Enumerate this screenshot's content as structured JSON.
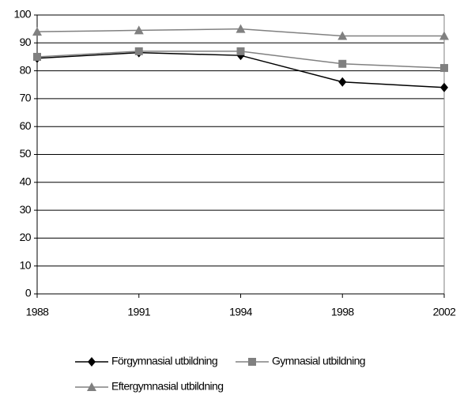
{
  "chart_data": {
    "type": "line",
    "categories": [
      "1988",
      "1991",
      "1994",
      "1998",
      "2002"
    ],
    "series": [
      {
        "name": "Förgymnasial utbildning",
        "color": "#000000",
        "marker": "diamond",
        "values": [
          84.5,
          86.5,
          85.5,
          76,
          74
        ]
      },
      {
        "name": "Gymnasial utbildning",
        "color": "#808080",
        "marker": "square",
        "values": [
          85,
          87,
          87,
          82.5,
          81
        ]
      },
      {
        "name": "Eftergymnasial utbildning",
        "color": "#808080",
        "marker": "triangle",
        "values": [
          94,
          94.5,
          95,
          92.5,
          92.5
        ]
      }
    ],
    "ylim": [
      0,
      100
    ],
    "yticks": [
      0,
      10,
      20,
      30,
      40,
      50,
      60,
      70,
      80,
      90,
      100
    ],
    "grid": true
  }
}
